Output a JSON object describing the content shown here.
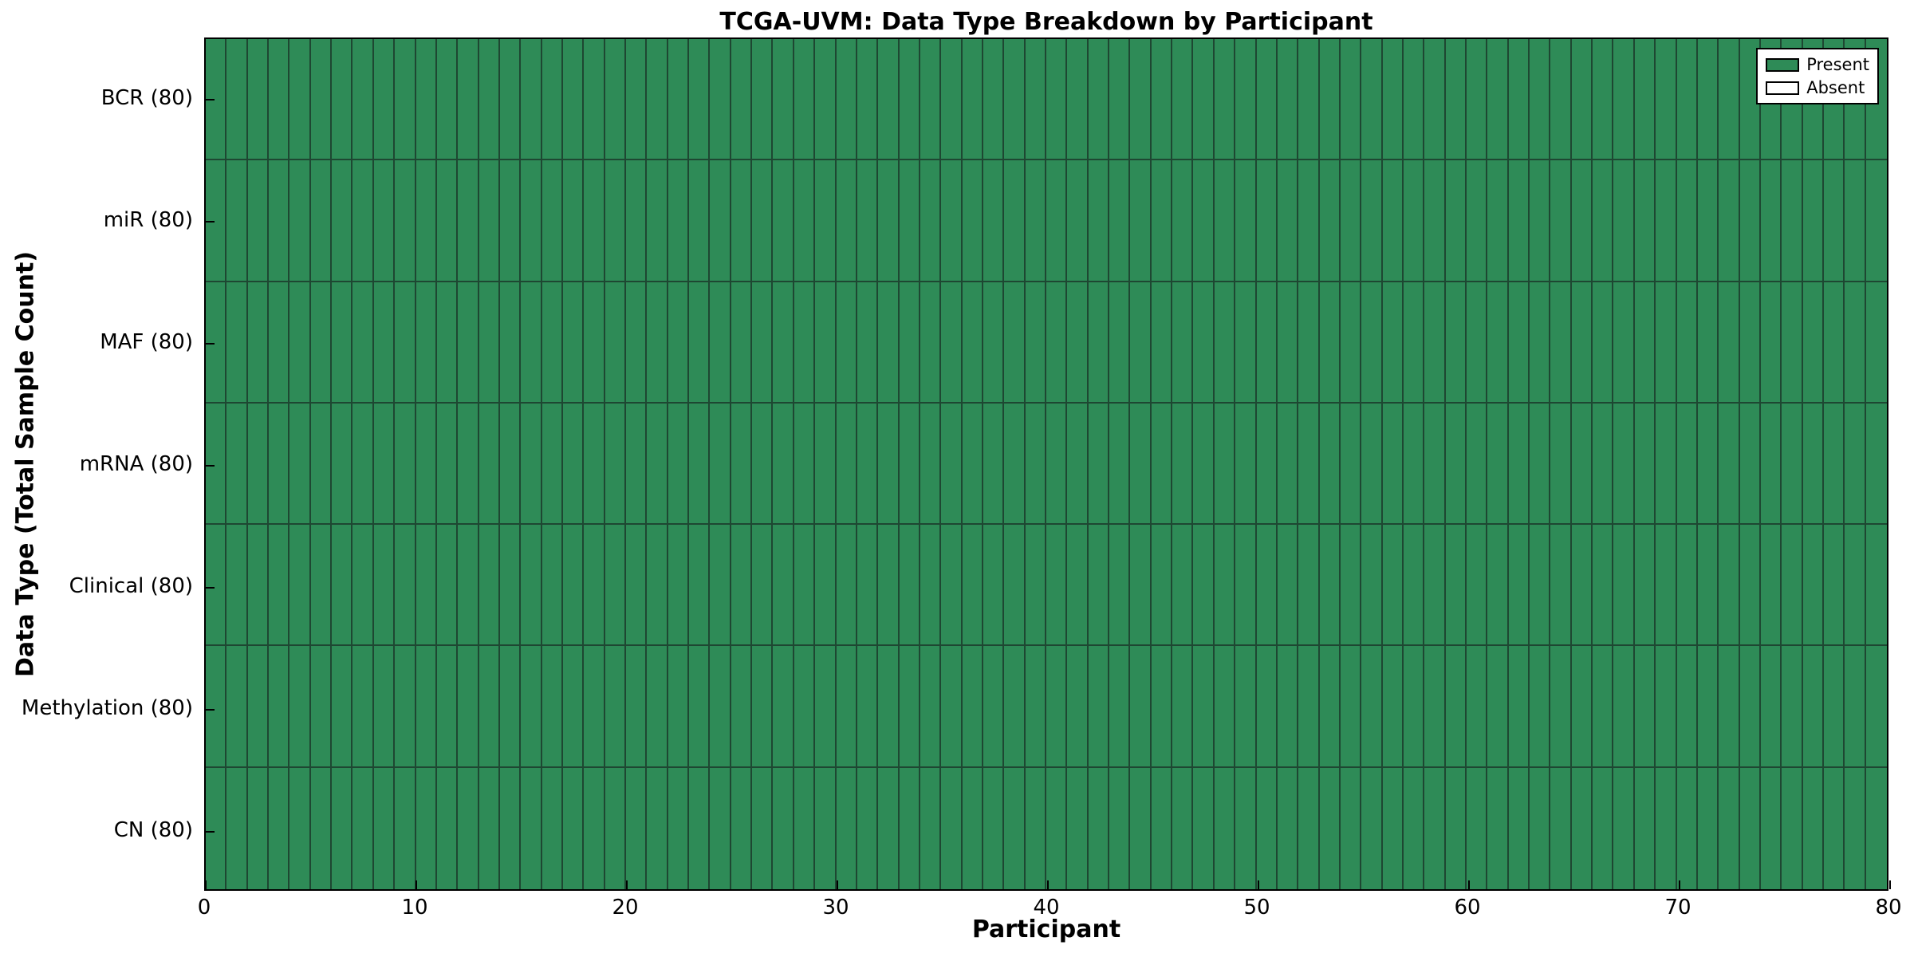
{
  "chart_data": {
    "type": "heatmap",
    "title": "TCGA-UVM: Data Type Breakdown by Participant",
    "xlabel": "Participant",
    "ylabel": "Data Type (Total Sample Count)",
    "xlim": [
      0,
      80
    ],
    "x_ticks": [
      0,
      10,
      20,
      30,
      40,
      50,
      60,
      70,
      80
    ],
    "n_participants": 80,
    "grid_on": false,
    "legend_position": "upper right",
    "rows": [
      {
        "label": "BCR (80)",
        "total_samples": 80,
        "present": 80,
        "absent": 0
      },
      {
        "label": "miR (80)",
        "total_samples": 80,
        "present": 80,
        "absent": 0
      },
      {
        "label": "MAF (80)",
        "total_samples": 80,
        "present": 80,
        "absent": 0
      },
      {
        "label": "mRNA (80)",
        "total_samples": 80,
        "present": 80,
        "absent": 0
      },
      {
        "label": "Clinical (80)",
        "total_samples": 80,
        "present": 80,
        "absent": 0
      },
      {
        "label": "Methylation (80)",
        "total_samples": 80,
        "present": 80,
        "absent": 0
      },
      {
        "label": "CN (80)",
        "total_samples": 80,
        "present": 80,
        "absent": 0
      }
    ],
    "cells_note": "Every cell in all 7 rows x 80 participant columns is Present",
    "legend": {
      "entries": [
        {
          "label": "Present",
          "color": "#2e8b57"
        },
        {
          "label": "Absent",
          "color": "#ffffff"
        }
      ]
    },
    "colors": {
      "present": "#2e8b57",
      "absent": "#ffffff",
      "cell_edge": "#1e4732",
      "axis_border": "#000000",
      "text": "#000000",
      "background": "#ffffff"
    }
  }
}
